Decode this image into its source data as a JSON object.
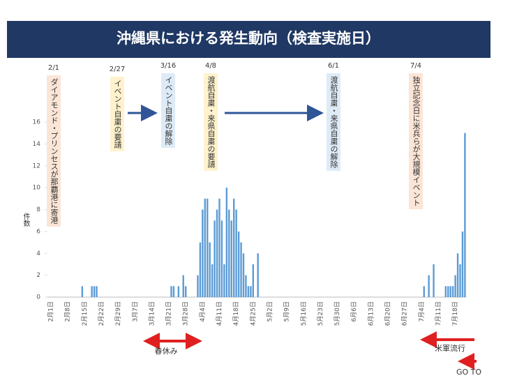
{
  "chart_data": {
    "type": "bar",
    "title": "沖縄県における発生動向（検査実施日）",
    "y_label": "件数",
    "color": "#5b9bd5",
    "ylim": [
      0,
      16
    ],
    "yticks": [
      0,
      2,
      4,
      6,
      8,
      10,
      12,
      14,
      16
    ],
    "grid": false,
    "categories": [
      "2月1日",
      null,
      null,
      null,
      null,
      null,
      null,
      "2月8日",
      null,
      null,
      null,
      null,
      null,
      null,
      "2月15日",
      null,
      null,
      null,
      null,
      null,
      null,
      "2月22日",
      null,
      null,
      null,
      null,
      null,
      null,
      "2月29日",
      null,
      null,
      null,
      null,
      null,
      null,
      "3月7日",
      null,
      null,
      null,
      null,
      null,
      null,
      "3月14日",
      null,
      null,
      null,
      null,
      null,
      null,
      "3月21日",
      null,
      null,
      null,
      null,
      null,
      null,
      "3月28日",
      null,
      null,
      null,
      null,
      null,
      null,
      "4月4日",
      null,
      null,
      null,
      null,
      null,
      null,
      "4月11日",
      null,
      null,
      null,
      null,
      null,
      null,
      "4月18日",
      null,
      null,
      null,
      null,
      null,
      null,
      "4月25日",
      null,
      null,
      null,
      null,
      null,
      null,
      "5月2日",
      null,
      null,
      null,
      null,
      null,
      null,
      "5月9日",
      null,
      null,
      null,
      null,
      null,
      null,
      "5月16日",
      null,
      null,
      null,
      null,
      null,
      null,
      "5月23日",
      null,
      null,
      null,
      null,
      null,
      null,
      "5月30日",
      null,
      null,
      null,
      null,
      null,
      null,
      "6月6日",
      null,
      null,
      null,
      null,
      null,
      null,
      "6月13日",
      null,
      null,
      null,
      null,
      null,
      null,
      "6月20日",
      null,
      null,
      null,
      null,
      null,
      null,
      "6月27日",
      null,
      null,
      null,
      null,
      null,
      null,
      "7月4日",
      null,
      null,
      null,
      null,
      null,
      null,
      "7月11日",
      null,
      null,
      null,
      null,
      null,
      null,
      "7月18日",
      null,
      null,
      null,
      null
    ],
    "values": [
      0,
      0,
      0,
      0,
      0,
      0,
      0,
      0,
      0,
      0,
      0,
      0,
      0,
      1,
      0,
      0,
      0,
      1,
      1,
      1,
      0,
      0,
      0,
      0,
      0,
      0,
      0,
      0,
      0,
      0,
      0,
      0,
      0,
      0,
      0,
      0,
      0,
      0,
      0,
      0,
      0,
      0,
      0,
      0,
      0,
      0,
      0,
      0,
      0,
      0,
      1,
      1,
      0,
      1,
      0,
      2,
      1,
      0,
      0,
      0,
      0,
      2,
      5,
      8,
      9,
      9,
      5,
      3,
      7,
      8,
      9,
      7,
      3,
      10,
      8,
      7,
      9,
      8,
      6,
      5,
      4,
      2,
      1,
      1,
      3,
      0,
      4,
      0,
      0,
      0,
      0,
      0,
      0,
      0,
      0,
      0,
      0,
      0,
      0,
      0,
      0,
      0,
      0,
      0,
      0,
      0,
      0,
      0,
      0,
      0,
      0,
      0,
      0,
      0,
      0,
      0,
      0,
      0,
      0,
      0,
      0,
      0,
      0,
      0,
      0,
      0,
      0,
      0,
      0,
      0,
      0,
      0,
      0,
      0,
      0,
      0,
      0,
      0,
      0,
      0,
      0,
      0,
      0,
      0,
      0,
      0,
      0,
      0,
      0,
      0,
      0,
      0,
      0,
      0,
      0,
      1,
      0,
      2,
      0,
      3,
      0,
      0,
      0,
      0,
      1,
      1,
      1,
      1,
      2,
      4,
      3,
      6,
      15
    ],
    "annotations": [
      {
        "date": "2/1",
        "text": "ダイアモンド・プリンセスが那覇港に寄港",
        "color": "#fbe5d6"
      },
      {
        "date": "2/27",
        "text": "イベント自粛の要請",
        "color": "#fff2cc"
      },
      {
        "date": "3/16",
        "text": "イベント自粛の解除",
        "color": "#deebf7"
      },
      {
        "date": "4/8",
        "text": "渡航自粛・来県自粛の要請",
        "color": "#fff2cc"
      },
      {
        "date": "6/1",
        "text": "渡航自粛・来県自粛の解除",
        "color": "#deebf7"
      },
      {
        "date": "7/4",
        "text": "独立記念日に米兵らが大規模イベント",
        "color": "#fbe5d6"
      }
    ],
    "notes": [
      "春休み",
      "米軍流行",
      "GO TO"
    ]
  }
}
